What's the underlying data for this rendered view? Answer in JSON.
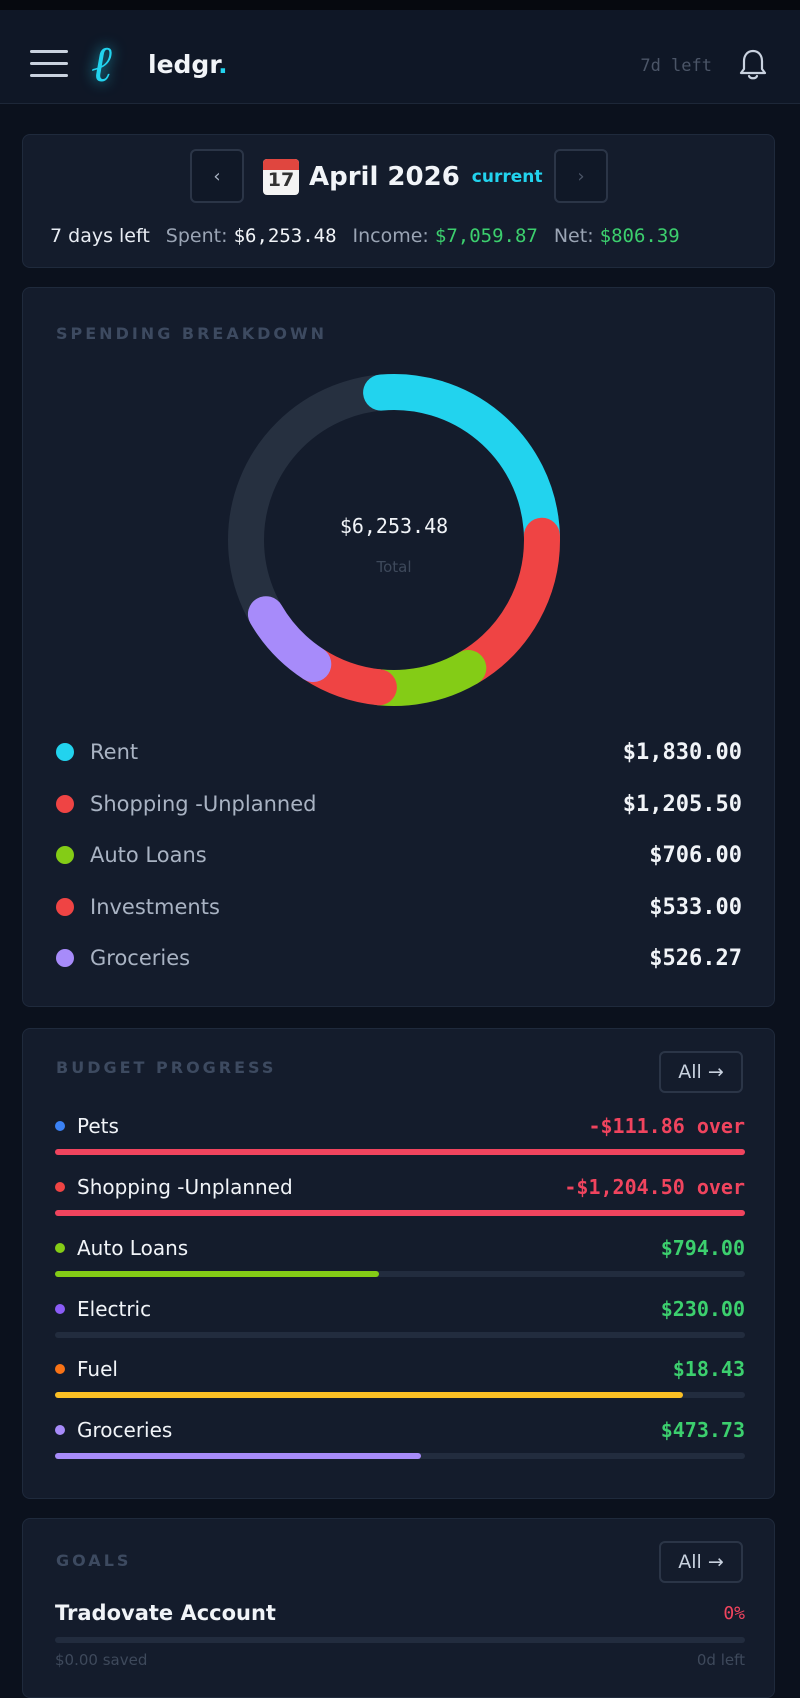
{
  "app": {
    "name": "ledgr",
    "name_dot": ".",
    "days_left_badge": "7d left"
  },
  "month": {
    "title": "April 2026",
    "tag": "current",
    "calendar_day": "17",
    "days_left": "7 days left",
    "spent_label": "Spent:",
    "spent": "$6,253.48",
    "income_label": "Income:",
    "income": "$7,059.87",
    "net_label": "Net:",
    "net": "$806.39"
  },
  "spending": {
    "title": "SPENDING BREAKDOWN",
    "total": "$6,253.48",
    "total_label": "Total",
    "items": [
      {
        "label": "Rent",
        "value": "$1,830.00",
        "amount": 1830.0,
        "color": "#22d3ee"
      },
      {
        "label": "Shopping -Unplanned",
        "value": "$1,205.50",
        "amount": 1205.5,
        "color": "#ef4444"
      },
      {
        "label": "Auto Loans",
        "value": "$706.00",
        "amount": 706.0,
        "color": "#84cc16"
      },
      {
        "label": "Investments",
        "value": "$533.00",
        "amount": 533.0,
        "color": "#ef4444"
      },
      {
        "label": "Groceries",
        "value": "$526.27",
        "amount": 526.27,
        "color": "#a78bfa"
      }
    ]
  },
  "budget": {
    "title": "BUDGET PROGRESS",
    "all_label": "All →",
    "items": [
      {
        "label": "Pets",
        "amount": "-$111.86 over",
        "dot_color": "#3b82f6",
        "bar_color": "#f0445e",
        "text_color": "#f0445e",
        "progress": 1.0
      },
      {
        "label": "Shopping -Unplanned",
        "amount": "-$1,204.50 over",
        "dot_color": "#ef4444",
        "bar_color": "#f0445e",
        "text_color": "#f0445e",
        "progress": 1.0
      },
      {
        "label": "Auto Loans",
        "amount": "$794.00",
        "dot_color": "#84cc16",
        "bar_color": "#84cc16",
        "text_color": "#3ccf6e",
        "progress": 0.47
      },
      {
        "label": "Electric",
        "amount": "$230.00",
        "dot_color": "#8b5cf6",
        "bar_color": "#8b5cf6",
        "text_color": "#3ccf6e",
        "progress": 0.0
      },
      {
        "label": "Fuel",
        "amount": "$18.43",
        "dot_color": "#f97316",
        "bar_color": "#fbbf24",
        "text_color": "#3ccf6e",
        "progress": 0.91
      },
      {
        "label": "Groceries",
        "amount": "$473.73",
        "dot_color": "#a78bfa",
        "bar_color": "#a78bfa",
        "text_color": "#3ccf6e",
        "progress": 0.53
      }
    ]
  },
  "goals": {
    "title": "GOALS",
    "all_label": "All →",
    "items": [
      {
        "name": "Tradovate Account",
        "pct": "0%",
        "sub_left": "$0.00 saved",
        "sub_right": "0d left"
      }
    ]
  }
}
